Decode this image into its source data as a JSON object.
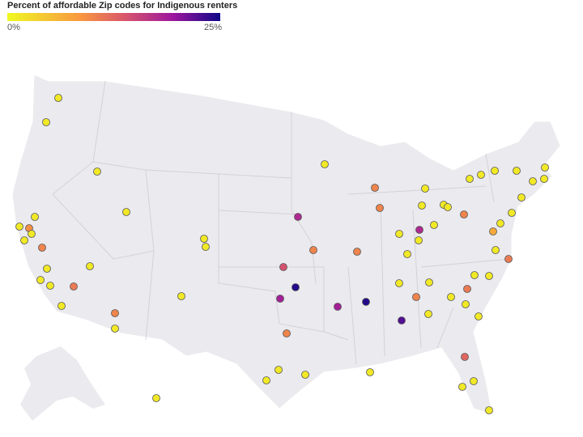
{
  "legend": {
    "title": "Percent of affordable Zip codes for Indigenous renters",
    "min_label": "0%",
    "max_label": "25%",
    "range": [
      0,
      25
    ],
    "colors": [
      "#f0f921",
      "#f89540",
      "#d8576b",
      "#9c179e",
      "#0d0887"
    ]
  },
  "map": {
    "land_color": "#ebeaee",
    "border_color": "#ffffff",
    "state_line_color": "#c8c6cc"
  },
  "markers": [
    1,
    1,
    1,
    1,
    1,
    7,
    1,
    1,
    8,
    1,
    1,
    1,
    1,
    9,
    1,
    1,
    1,
    1,
    1,
    8,
    1,
    1,
    1,
    1,
    1,
    8,
    18,
    24,
    13,
    17,
    8,
    1,
    18,
    8,
    24,
    8,
    8,
    1,
    22,
    1,
    1,
    1,
    8,
    1,
    1,
    1,
    17,
    1,
    1,
    1,
    1,
    1,
    8,
    1,
    1,
    1,
    1,
    1,
    1,
    1,
    1,
    1,
    1,
    5,
    1,
    9,
    1,
    1,
    9,
    1,
    1,
    1,
    11,
    1,
    1,
    1
  ]
}
